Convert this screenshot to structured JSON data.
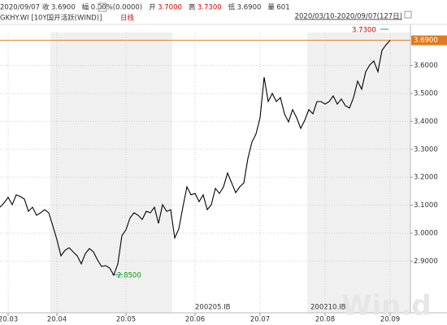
{
  "header": {
    "date": "2020/09/07",
    "items": [
      {
        "label": "收",
        "value": "3.6900"
      },
      {
        "label": "幅",
        "value": "0.00%(0.0000)"
      },
      {
        "label": "开",
        "value": "3.7000"
      },
      {
        "label": "高",
        "value": "3.7300"
      },
      {
        "label": "低",
        "value": "3.6900"
      },
      {
        "label": "量",
        "value": "601"
      }
    ],
    "instrument": "GKHY.WI [10Y国开活跃(WIND)]",
    "period": "日线",
    "range": "2020/03/10-2020/09/07(127日)"
  },
  "chart_data": {
    "type": "line",
    "color": "#000000",
    "values": [
      3.093,
      3.108,
      3.128,
      3.102,
      3.137,
      3.131,
      3.122,
      3.078,
      3.093,
      3.064,
      3.073,
      3.084,
      3.073,
      3.026,
      2.977,
      2.919,
      2.939,
      2.948,
      2.933,
      2.919,
      2.89,
      2.927,
      2.945,
      2.933,
      2.904,
      2.881,
      2.884,
      2.875,
      2.85,
      2.89,
      2.991,
      3.012,
      3.055,
      3.073,
      3.064,
      3.049,
      3.078,
      3.073,
      3.093,
      3.035,
      3.102,
      3.078,
      3.084,
      2.983,
      3.015,
      3.093,
      3.166,
      3.137,
      3.142,
      3.113,
      3.137,
      3.084,
      3.102,
      3.16,
      3.142,
      3.166,
      3.215,
      3.18,
      3.145,
      3.166,
      3.18,
      3.267,
      3.326,
      3.355,
      3.413,
      3.558,
      3.471,
      3.5,
      3.471,
      3.485,
      3.427,
      3.398,
      3.442,
      3.413,
      3.375,
      3.404,
      3.442,
      3.427,
      3.471,
      3.471,
      3.462,
      3.471,
      3.491,
      3.462,
      3.48,
      3.456,
      3.448,
      3.485,
      3.544,
      3.515,
      3.578,
      3.602,
      3.616,
      3.578,
      3.654,
      3.674,
      3.69
    ],
    "xlim": [
      0,
      101
    ],
    "xticks": [
      {
        "value": 2,
        "label": "20.03"
      },
      {
        "value": 14,
        "label": "20.04"
      },
      {
        "value": 31,
        "label": "20.05"
      },
      {
        "value": 48,
        "label": "20.06"
      },
      {
        "value": 64,
        "label": "20.07"
      },
      {
        "value": 80,
        "label": "20.08"
      },
      {
        "value": 96,
        "label": "20.09"
      }
    ],
    "ylim": [
      2.715,
      3.718
    ],
    "yticks": [
      {
        "value": 2.9,
        "label": "2.9000"
      },
      {
        "value": 3.0,
        "label": "3.0000"
      },
      {
        "value": 3.1,
        "label": "3.1000"
      },
      {
        "value": 3.2,
        "label": "3.2000"
      },
      {
        "value": 3.3,
        "label": "3.3000"
      },
      {
        "value": 3.4,
        "label": "3.4000"
      },
      {
        "value": 3.5,
        "label": "3.5000"
      },
      {
        "value": 3.6,
        "label": "3.6000"
      }
    ],
    "last": {
      "value": 3.69,
      "label": "3.6900",
      "color": "#e07b20"
    },
    "high_label": "3.7300",
    "low_label": "2.8500",
    "contracts": [
      "200205.IB",
      "200210.IB"
    ],
    "watermark": "Win.d",
    "grid": true
  }
}
